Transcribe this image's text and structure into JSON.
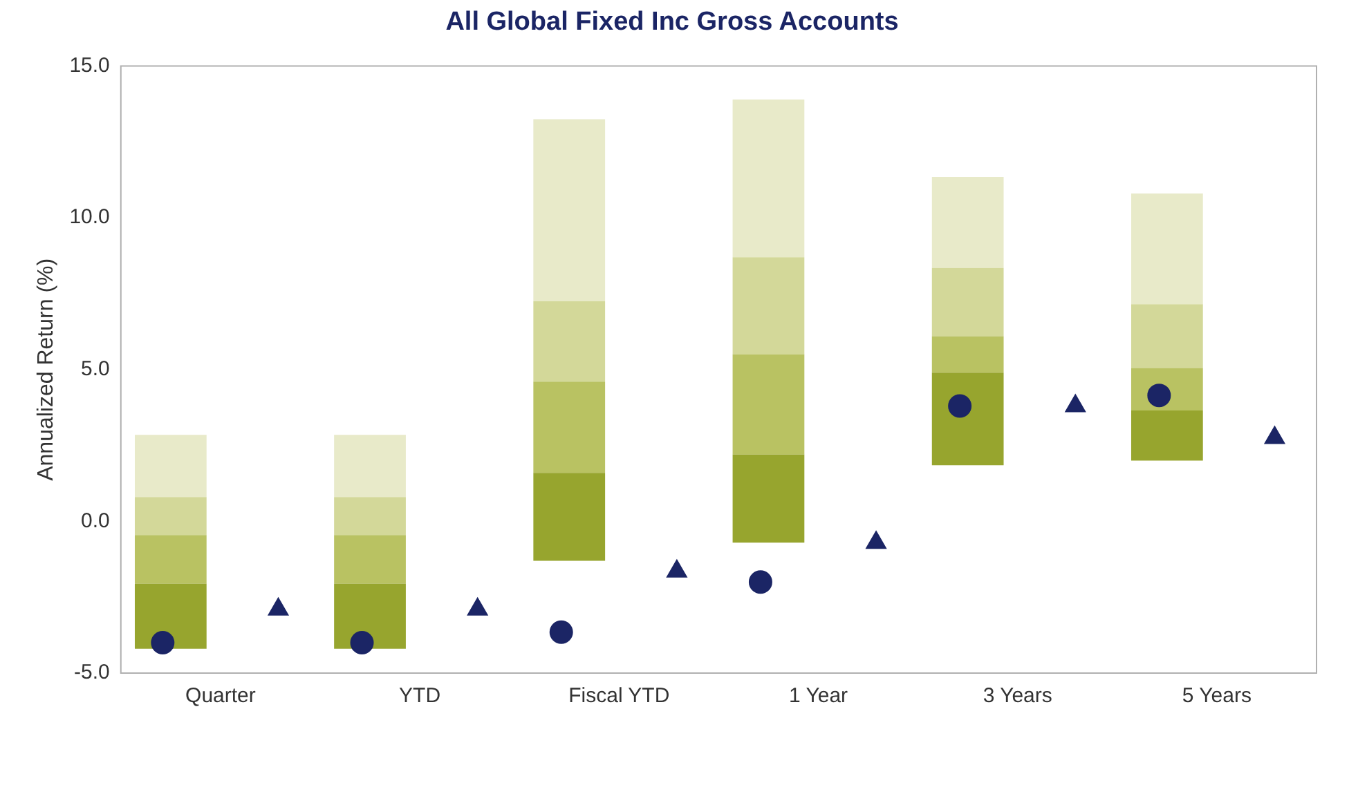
{
  "chart_data": {
    "type": "bar",
    "title": "All Global Fixed Inc Gross Accounts",
    "ylabel": "Annualized Return (%)",
    "categories": [
      "Quarter",
      "YTD",
      "Fiscal YTD",
      "1 Year",
      "3 Years",
      "5 Years"
    ],
    "series": [
      {
        "color": "#97a52e",
        "base": [
          -4.2,
          -4.2,
          -1.3,
          -0.7,
          1.85,
          2.0
        ],
        "values": [
          2.15,
          2.15,
          2.9,
          2.9,
          3.05,
          1.65
        ]
      },
      {
        "color": "#b9c262",
        "base": [
          -2.05,
          -2.05,
          1.6,
          2.2,
          4.9,
          3.65
        ],
        "values": [
          1.6,
          1.6,
          3.0,
          3.3,
          1.2,
          1.4
        ]
      },
      {
        "color": "#d3d899",
        "base": [
          -0.45,
          -0.45,
          4.6,
          5.5,
          6.1,
          5.05
        ],
        "values": [
          1.25,
          1.25,
          2.65,
          3.2,
          2.25,
          2.1
        ]
      },
      {
        "color": "#e8eac9",
        "base": [
          0.8,
          0.8,
          7.25,
          8.7,
          8.35,
          7.15
        ],
        "values": [
          2.05,
          2.05,
          6.0,
          5.2,
          3.0,
          3.65
        ]
      },
      {
        "type": "scatter",
        "marker": "circle",
        "color": "#1b2565",
        "x": [
          "Quarter",
          "YTD",
          "Fiscal YTD",
          "1 Year",
          "3 Years",
          "5 Years"
        ],
        "values": [
          -4.0,
          -4.0,
          -3.65,
          -2.0,
          3.8,
          4.15
        ]
      },
      {
        "type": "scatter",
        "marker": "triangle",
        "color": "#1b2565",
        "x": [
          "Quarter",
          "YTD",
          "Fiscal YTD",
          "1 Year",
          "3 Years",
          "5 Years"
        ],
        "values": [
          -2.9,
          -2.9,
          -1.65,
          -0.7,
          3.8,
          2.75
        ]
      }
    ],
    "ylim": [
      -5,
      15
    ],
    "yticks": [
      {
        "value": -5,
        "label": "-5.0"
      },
      {
        "value": 0,
        "label": "0.0"
      },
      {
        "value": 5,
        "label": "5.0"
      },
      {
        "value": 10,
        "label": "10.0"
      },
      {
        "value": 15,
        "label": "15.0"
      }
    ],
    "grid": false,
    "legend": false
  }
}
